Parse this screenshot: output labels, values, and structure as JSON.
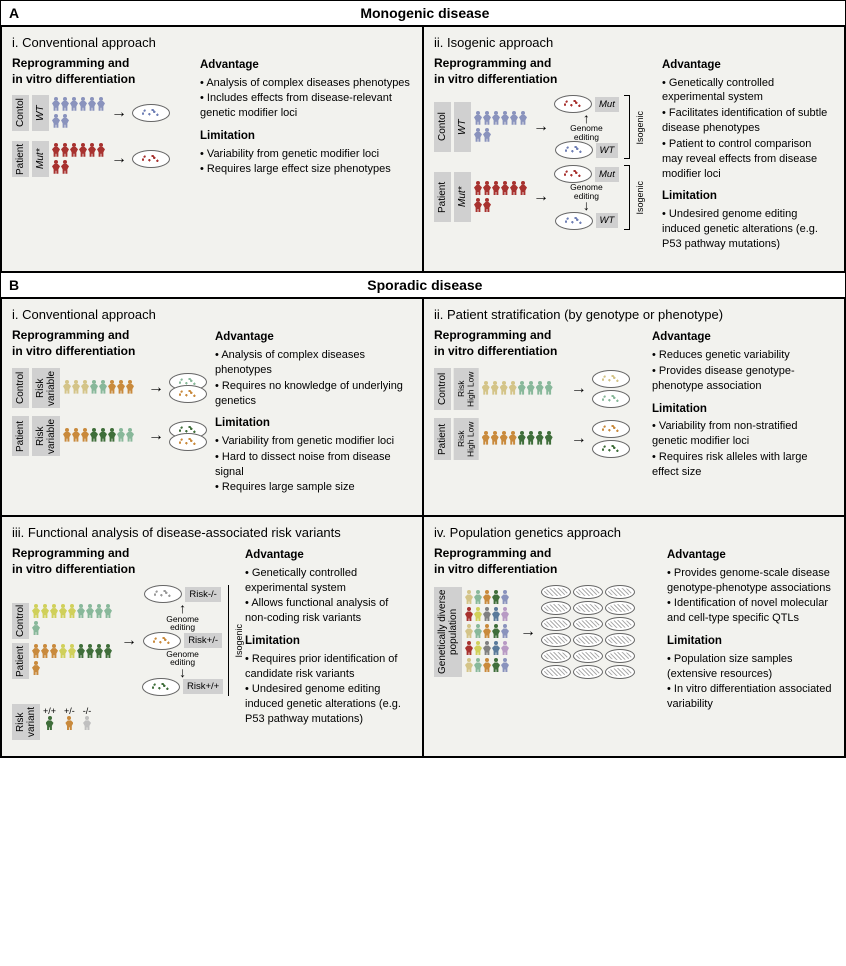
{
  "sectionA": {
    "tag": "A",
    "title": "Monogenic disease",
    "panels": {
      "i": {
        "num": "i.",
        "title": "Conventional approach",
        "subtitle": "Reprogramming and\nin vitro differentiation",
        "groups": {
          "control": {
            "label": "Contol",
            "sub": "WT",
            "color": "#8a93bd",
            "dish_color": "#6f7fb5"
          },
          "patient": {
            "label": "Patient",
            "sub": "Mut*",
            "color": "#a8322f",
            "dish_color": "#a8322f"
          }
        },
        "adv_h": "Advantage",
        "adv": [
          "Analysis of complex diseases phenotypes",
          "Includes effects from disease-relevant genetic modifier loci"
        ],
        "lim_h": "Limitation",
        "lim": [
          "Variability from genetic modifier loci",
          "Requires large effect size phenotypes"
        ]
      },
      "ii": {
        "num": "ii.",
        "title": "Isogenic approach",
        "subtitle": "Reprogramming and\nin vitro differentiation",
        "groups": {
          "control": {
            "label": "Contol",
            "sub": "WT",
            "color": "#8a93bd"
          },
          "patient": {
            "label": "Patient",
            "sub": "Mut*",
            "color": "#a8322f"
          }
        },
        "edit": "Genome\nediting",
        "mut": "Mut",
        "wt": "WT",
        "iso": "Isogenic",
        "adv_h": "Advantage",
        "adv": [
          "Genetically controlled experimental system",
          "Facilitates identification of subtle disease phenotypes",
          "Patient to control comparison may reveal effects from disease modifier loci"
        ],
        "lim_h": "Limitation",
        "lim": [
          "Undesired genome editing induced genetic alterations (e.g. P53 pathway mutations)"
        ]
      }
    }
  },
  "sectionB": {
    "tag": "B",
    "title": "Sporadic disease",
    "panels": {
      "i": {
        "num": "i.",
        "title": "Conventional approach",
        "subtitle": "Reprogramming and\nin vitro differentiation",
        "groups": {
          "control": {
            "label": "Control",
            "sub": "Risk\nvariable",
            "colors": [
              "#d4c488",
              "#d4c488",
              "#d4c488",
              "#88b89a",
              "#88b89a",
              "#c98a3c",
              "#c98a3c",
              "#c98a3c"
            ]
          },
          "patient": {
            "label": "Patient",
            "sub": "Risk\nvariable",
            "colors": [
              "#c98a3c",
              "#c98a3c",
              "#c98a3c",
              "#3f6e3a",
              "#3f6e3a",
              "#3f6e3a",
              "#88b89a",
              "#88b89a"
            ]
          }
        },
        "dish_colors_c": [
          "#88b89a",
          "#c98a3c"
        ],
        "dish_colors_p": [
          "#3f6e3a",
          "#c98a3c"
        ],
        "adv_h": "Advantage",
        "adv": [
          "Analysis of complex diseases phenotypes",
          "Requires no knowledge of underlying genetics"
        ],
        "lim_h": "Limitation",
        "lim": [
          "Variability from genetic modifier loci",
          "Hard to dissect noise from disease signal",
          "Requires large sample size"
        ]
      },
      "ii": {
        "num": "ii.",
        "title": "Patient stratification (by genotype or phenotype)",
        "subtitle": "Reprogramming and\nin vitro differentiation",
        "groups": {
          "control": {
            "label": "Control",
            "sub": "Risk\nHigh Low",
            "colors": [
              "#d4c488",
              "#d4c488",
              "#d4c488",
              "#d4c488",
              "#88b89a",
              "#88b89a",
              "#88b89a",
              "#88b89a"
            ]
          },
          "patient": {
            "label": "Patient",
            "sub": "Risk\nHigh Low",
            "colors": [
              "#c98a3c",
              "#c98a3c",
              "#c98a3c",
              "#c98a3c",
              "#3f6e3a",
              "#3f6e3a",
              "#3f6e3a",
              "#3f6e3a"
            ]
          }
        },
        "dish_colors_c": [
          "#d4c488",
          "#88b89a"
        ],
        "dish_colors_p": [
          "#c98a3c",
          "#3f6e3a"
        ],
        "adv_h": "Advantage",
        "adv": [
          "Reduces genetic variability",
          "Provides disease genotype-phenotype association"
        ],
        "lim_h": "Limitation",
        "lim": [
          "Variability from non-stratified genetic modifier loci",
          "Requires risk alleles with large effect size"
        ]
      },
      "iii": {
        "num": "iii.",
        "title": "Functional analysis of disease-associated risk variants",
        "subtitle": "Reprogramming and\nin vitro differentiation",
        "groups": {
          "control": {
            "label": "Control",
            "colors": [
              "#d0d05a",
              "#d0d05a",
              "#d0d05a",
              "#d0d05a",
              "#d0d05a",
              "#88b89a",
              "#88b89a",
              "#88b89a",
              "#88b89a",
              "#88b89a"
            ]
          },
          "patient": {
            "label": "Patient",
            "colors": [
              "#c98a3c",
              "#c98a3c",
              "#c98a3c",
              "#d0d05a",
              "#d0d05a",
              "#3f6e3a",
              "#3f6e3a",
              "#3f6e3a",
              "#3f6e3a",
              "#c98a3c"
            ]
          }
        },
        "risk_label": "Risk\nvariant",
        "risk_geno": [
          "+/+",
          "+/-",
          "-/-"
        ],
        "risk_colors": [
          "#3f6e3a",
          "#c98a3c",
          "#c0c0c0"
        ],
        "edit": "Genome\nediting",
        "levels": [
          "Risk-/-",
          "Risk+/-",
          "Risk+/+"
        ],
        "iso": "Isogenic",
        "adv_h": "Advantage",
        "adv": [
          "Genetically controlled experimental system",
          "Allows functional analysis of non-coding risk variants"
        ],
        "lim_h": "Limitation",
        "lim": [
          "Requires prior identification of candidate risk variants",
          "Undesired genome editing induced genetic alterations (e.g. P53 pathway mutations)"
        ]
      },
      "iv": {
        "num": "iv.",
        "title": "Population genetics approach",
        "subtitle": "Reprogramming and\nin vitro differentiation",
        "pop_label": "Genetically diverse\npopulation",
        "pop_colors": [
          "#d4c488",
          "#88b89a",
          "#c98a3c",
          "#3f6e3a",
          "#8a93bd",
          "#a8322f",
          "#d0d05a",
          "#808080",
          "#5a7a9a",
          "#b89ac4",
          "#d4c488",
          "#88b89a",
          "#c98a3c",
          "#3f6e3a",
          "#8a93bd",
          "#a8322f",
          "#d0d05a",
          "#808080",
          "#5a7a9a",
          "#b89ac4",
          "#d4c488",
          "#88b89a",
          "#c98a3c",
          "#3f6e3a",
          "#8a93bd"
        ],
        "adv_h": "Advantage",
        "adv": [
          "Provides genome-scale disease genotype-phenotype associations",
          "Identification of novel molecular and cell-type specific QTLs"
        ],
        "lim_h": "Limitation",
        "lim": [
          "Population size samples (extensive resources)",
          "In vitro differentiation associated variability"
        ]
      }
    }
  }
}
